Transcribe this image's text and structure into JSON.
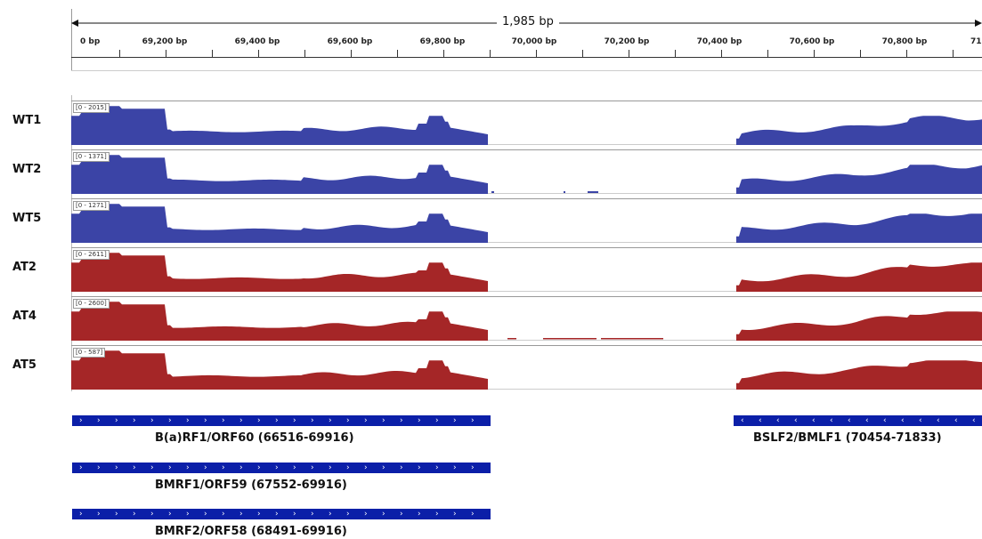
{
  "ruler": {
    "span_label": "1,985 bp",
    "ticks": [
      "0 bp",
      "69,200 bp",
      "69,400 bp",
      "69,600 bp",
      "69,800 bp",
      "70,000 bp",
      "70,200 bp",
      "70,400 bp",
      "70,600 bp",
      "70,800 bp",
      "71,"
    ]
  },
  "tracks": [
    {
      "name": "WT1",
      "range": "[0 - 2015]",
      "color": "#3b44a6"
    },
    {
      "name": "WT2",
      "range": "[0 - 1371]",
      "color": "#3b44a6"
    },
    {
      "name": "WT5",
      "range": "[0 - 1271]",
      "color": "#3b44a6"
    },
    {
      "name": "AT2",
      "range": "[0 - 2611]",
      "color": "#a52627"
    },
    {
      "name": "AT4",
      "range": "[0 - 2600]",
      "color": "#a52627"
    },
    {
      "name": "AT5",
      "range": "[0 - 587]",
      "color": "#a52627"
    }
  ],
  "genes": [
    {
      "label": "B(a)RF1/ORF60 (66516-69916)",
      "direction": "forward"
    },
    {
      "label": "BSLF2/BMLF1 (70454-71833)",
      "direction": "reverse"
    },
    {
      "label": "BMRF1/ORF59 (67552-69916)",
      "direction": "forward"
    },
    {
      "label": "BMRF2/ORF58 (68491-69916)",
      "direction": "forward"
    }
  ]
}
